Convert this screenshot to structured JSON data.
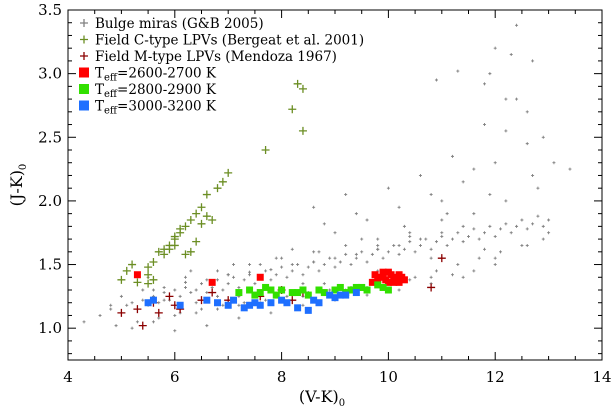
{
  "chart_data": {
    "type": "scatter",
    "title": "",
    "xlabel": "(V-K)",
    "xlabel_sub": "0",
    "ylabel": "(J-K)",
    "ylabel_sub": "0",
    "xlim": [
      4,
      14
    ],
    "ylim": [
      0.75,
      3.5
    ],
    "xticks": [
      4,
      6,
      8,
      10,
      12,
      14
    ],
    "yticks": [
      1.0,
      1.5,
      2.0,
      2.5,
      3.0,
      3.5
    ],
    "ytick_labels": [
      "1.0",
      "1.5",
      "2.0",
      "2.5",
      "3.0",
      "3.5"
    ],
    "grid": false,
    "legend_position": "top-left",
    "series": [
      {
        "name": "Bulge miras (G&B 2005)",
        "marker": "plus-small",
        "color": "#808080",
        "x": [
          4.3,
          4.6,
          4.8,
          5.0,
          5.1,
          5.2,
          5.3,
          5.4,
          5.5,
          5.6,
          5.7,
          5.8,
          5.9,
          6.0,
          6.1,
          6.2,
          6.3,
          6.4,
          6.5,
          6.6,
          6.7,
          6.8,
          6.9,
          7.0,
          7.1,
          7.2,
          7.3,
          7.4,
          7.5,
          7.6,
          7.7,
          7.8,
          7.9,
          8.0,
          8.1,
          8.2,
          8.3,
          8.4,
          8.5,
          8.6,
          8.7,
          8.8,
          8.9,
          9.0,
          9.1,
          9.2,
          9.3,
          9.4,
          9.5,
          9.6,
          9.7,
          9.8,
          9.9,
          10.0,
          10.1,
          10.2,
          10.3,
          10.4,
          10.5,
          10.6,
          10.7,
          10.8,
          10.9,
          11.0,
          11.1,
          11.2,
          11.3,
          11.4,
          11.5,
          11.6,
          11.7,
          11.8,
          11.9,
          12.0,
          12.1,
          12.2,
          12.3,
          12.4,
          12.5,
          12.6,
          12.7,
          12.8,
          12.9,
          13.0,
          13.4,
          4.9,
          5.3,
          5.7,
          6.1,
          6.5,
          6.9,
          7.3,
          7.7,
          8.1,
          8.5,
          8.9,
          9.3,
          9.7,
          10.1,
          10.5,
          10.9,
          11.3,
          11.7,
          12.1,
          12.5,
          12.9,
          5.6,
          6.2,
          6.8,
          7.4,
          8.0,
          8.6,
          9.2,
          9.8,
          10.4,
          11.0,
          11.6,
          12.2,
          12.8,
          6.4,
          7.2,
          8.2,
          9.0,
          9.6,
          10.2,
          10.8,
          11.4,
          12.0,
          12.6,
          8.4,
          8.8,
          9.4,
          10.0,
          10.6,
          11.2,
          11.8,
          12.4,
          7.0,
          7.6,
          8.6,
          9.2,
          9.8,
          10.4,
          11.0,
          11.6,
          12.2,
          12.4,
          12.0,
          11.3,
          10.9,
          11.8,
          12.3,
          12.6,
          12.9,
          13.1,
          12.7,
          12.2,
          11.9
        ],
        "y": [
          1.05,
          1.1,
          1.15,
          1.12,
          1.18,
          1.2,
          1.15,
          1.22,
          1.18,
          1.25,
          1.2,
          1.28,
          1.22,
          1.3,
          1.25,
          1.32,
          1.28,
          1.3,
          1.35,
          1.28,
          1.32,
          1.38,
          1.3,
          1.35,
          1.4,
          1.32,
          1.38,
          1.42,
          1.35,
          1.4,
          1.45,
          1.38,
          1.42,
          1.48,
          1.4,
          1.45,
          1.5,
          1.42,
          1.48,
          1.52,
          1.45,
          1.5,
          1.55,
          1.48,
          1.52,
          1.58,
          1.5,
          1.55,
          1.6,
          1.52,
          1.58,
          1.62,
          1.55,
          1.6,
          1.65,
          1.58,
          1.62,
          1.68,
          1.6,
          1.65,
          1.7,
          1.62,
          1.68,
          1.72,
          1.65,
          1.7,
          1.75,
          1.68,
          1.72,
          1.78,
          1.7,
          1.75,
          1.8,
          1.72,
          1.78,
          1.82,
          1.75,
          1.8,
          1.85,
          1.78,
          1.82,
          1.88,
          1.8,
          1.85,
          2.25,
          1.02,
          1.05,
          1.08,
          1.12,
          1.15,
          1.18,
          1.2,
          1.22,
          1.25,
          1.28,
          1.3,
          1.32,
          1.35,
          1.38,
          1.4,
          1.45,
          1.5,
          1.55,
          1.6,
          1.65,
          1.7,
          1.3,
          1.4,
          1.45,
          1.5,
          1.55,
          1.6,
          1.65,
          1.7,
          1.75,
          1.85,
          1.9,
          2.0,
          2.1,
          1.2,
          1.25,
          1.62,
          1.75,
          1.85,
          1.95,
          2.05,
          2.15,
          2.3,
          2.45,
          1.35,
          1.82,
          1.9,
          2.1,
          2.2,
          2.35,
          2.6,
          2.8,
          1.42,
          1.5,
          1.95,
          2.05,
          1.65,
          1.72,
          2.0,
          2.25,
          2.55,
          3.38,
          3.2,
          3.02,
          2.95,
          2.92,
          3.15,
          2.7,
          2.5,
          2.3,
          3.1,
          2.8,
          3.0
        ],
        "x_extra": [
          5.0,
          5.4,
          5.8,
          6.2,
          6.6,
          7.0,
          7.4,
          7.8,
          8.2,
          8.6,
          9.0,
          9.4,
          9.8,
          10.2,
          10.6,
          11.0,
          11.4,
          5.2,
          5.6,
          6.0,
          6.4,
          6.8,
          7.2,
          7.6,
          8.0,
          8.4,
          8.8,
          9.2,
          9.6,
          10.0,
          10.4,
          10.8,
          11.2,
          11.6,
          12.0,
          6.0,
          6.6,
          7.2,
          7.8,
          8.4,
          9.0,
          9.6,
          10.2,
          10.8,
          11.4,
          12.0,
          12.6,
          13.0,
          5.5,
          6.3,
          7.1,
          7.9,
          8.7,
          9.5,
          10.3,
          11.1,
          11.9,
          12.7,
          4.8,
          5.8,
          6.8,
          7.8,
          8.8,
          9.8,
          10.8,
          11.8
        ],
        "y_extra": [
          1.25,
          1.3,
          1.32,
          1.36,
          1.38,
          1.42,
          1.44,
          1.46,
          1.5,
          1.52,
          1.55,
          1.58,
          1.62,
          1.65,
          1.7,
          1.75,
          1.8,
          1.0,
          1.05,
          1.1,
          1.12,
          1.15,
          1.18,
          1.2,
          1.22,
          1.25,
          1.28,
          1.3,
          1.32,
          1.35,
          1.38,
          1.4,
          1.42,
          1.45,
          1.5,
          0.98,
          1.02,
          1.08,
          1.12,
          1.18,
          1.22,
          1.26,
          1.3,
          1.35,
          1.4,
          1.55,
          1.65,
          1.75,
          1.4,
          1.45,
          1.5,
          1.55,
          1.6,
          1.7,
          1.8,
          1.9,
          2.05,
          2.2,
          1.18,
          1.22,
          1.25,
          1.3,
          1.35,
          1.45,
          1.55,
          1.62
        ]
      },
      {
        "name": "Field C-type LPVs (Bergeat et al. 2001)",
        "marker": "plus",
        "color": "#6b8e23",
        "x": [
          5.0,
          5.1,
          5.2,
          5.3,
          5.5,
          5.5,
          5.6,
          5.7,
          5.8,
          5.9,
          6.0,
          6.1,
          6.2,
          6.3,
          6.4,
          6.5,
          6.6,
          6.6,
          6.8,
          6.9,
          7.0,
          7.7,
          8.2,
          8.3,
          8.4,
          8.4,
          5.5,
          5.6,
          5.8,
          6.0,
          6.1,
          6.3,
          6.4,
          6.5,
          6.2,
          6.0,
          5.9,
          6.7
        ],
        "y": [
          1.38,
          1.45,
          1.5,
          1.36,
          1.42,
          1.48,
          1.52,
          1.6,
          1.62,
          1.65,
          1.7,
          1.75,
          1.8,
          1.85,
          1.9,
          1.95,
          1.88,
          2.05,
          2.1,
          2.15,
          2.22,
          2.4,
          2.72,
          2.92,
          2.88,
          2.55,
          1.35,
          1.38,
          1.58,
          1.72,
          1.78,
          1.6,
          1.68,
          1.82,
          1.58,
          1.65,
          1.62,
          1.85
        ]
      },
      {
        "name": "Field M-type LPVs (Mendoza 1967)",
        "marker": "plus",
        "color": "#8b0000",
        "x": [
          5.0,
          5.3,
          5.4,
          5.6,
          5.7,
          5.9,
          6.0,
          6.1,
          6.5,
          6.7,
          7.0,
          7.6,
          8.0,
          8.2,
          8.4,
          10.8,
          11.0
        ],
        "y": [
          1.12,
          1.15,
          1.02,
          1.2,
          1.12,
          1.25,
          1.18,
          1.15,
          1.22,
          1.28,
          1.22,
          1.25,
          1.3,
          1.22,
          1.28,
          1.32,
          1.55
        ]
      },
      {
        "name": "T_eff=2600-2700 K",
        "marker": "square",
        "color": "#ff0000",
        "x": [
          5.3,
          6.7,
          7.6,
          9.7,
          9.8,
          9.85,
          9.9,
          9.95,
          10.0,
          10.05,
          10.1,
          10.15,
          10.2,
          10.25,
          10.3,
          9.75,
          10.0,
          10.1,
          9.9,
          10.2
        ],
        "y": [
          1.42,
          1.36,
          1.4,
          1.36,
          1.38,
          1.4,
          1.42,
          1.38,
          1.36,
          1.42,
          1.4,
          1.38,
          1.36,
          1.4,
          1.38,
          1.42,
          1.44,
          1.36,
          1.44,
          1.42
        ]
      },
      {
        "name": "T_eff=2800-2900 K",
        "marker": "square",
        "color": "#32e000",
        "x": [
          7.2,
          7.4,
          7.5,
          7.6,
          7.8,
          7.9,
          8.0,
          8.2,
          8.4,
          8.5,
          8.7,
          8.8,
          9.0,
          9.1,
          9.2,
          9.3,
          9.5,
          9.6,
          9.8,
          9.9,
          10.0,
          7.7,
          8.3,
          9.4
        ],
        "y": [
          1.28,
          1.3,
          1.26,
          1.28,
          1.3,
          1.26,
          1.3,
          1.28,
          1.3,
          1.26,
          1.3,
          1.28,
          1.3,
          1.32,
          1.28,
          1.3,
          1.32,
          1.3,
          1.34,
          1.32,
          1.3,
          1.32,
          1.28,
          1.32
        ]
      },
      {
        "name": "T_eff=3000-3200 K",
        "marker": "square",
        "color": "#1e6fff",
        "x": [
          5.5,
          5.6,
          6.1,
          6.6,
          6.8,
          7.0,
          7.1,
          7.3,
          7.4,
          7.5,
          7.6,
          7.8,
          8.0,
          8.1,
          8.3,
          8.6,
          8.7,
          8.9,
          9.0,
          9.2,
          9.4,
          8.5,
          9.1
        ],
        "y": [
          1.2,
          1.22,
          1.18,
          1.22,
          1.2,
          1.18,
          1.22,
          1.16,
          1.18,
          1.2,
          1.18,
          1.2,
          1.22,
          1.2,
          1.16,
          1.22,
          1.2,
          1.26,
          1.24,
          1.26,
          1.28,
          1.14,
          1.26
        ]
      }
    ],
    "legend": [
      {
        "label": "Bulge miras (G&B 2005)",
        "color": "#808080",
        "marker": "plus"
      },
      {
        "label": "Field C-type LPVs (Bergeat et al. 2001)",
        "color": "#6b8e23",
        "marker": "plus"
      },
      {
        "label": "Field M-type LPVs (Mendoza 1967)",
        "color": "#8b0000",
        "marker": "plus"
      },
      {
        "label_pre": "T",
        "label_sub": "eff",
        "label_post": "=2600-2700 K",
        "color": "#ff0000",
        "marker": "square"
      },
      {
        "label_pre": "T",
        "label_sub": "eff",
        "label_post": "=2800-2900 K",
        "color": "#32e000",
        "marker": "square"
      },
      {
        "label_pre": "T",
        "label_sub": "eff",
        "label_post": "=3000-3200 K",
        "color": "#1e6fff",
        "marker": "square"
      }
    ]
  }
}
